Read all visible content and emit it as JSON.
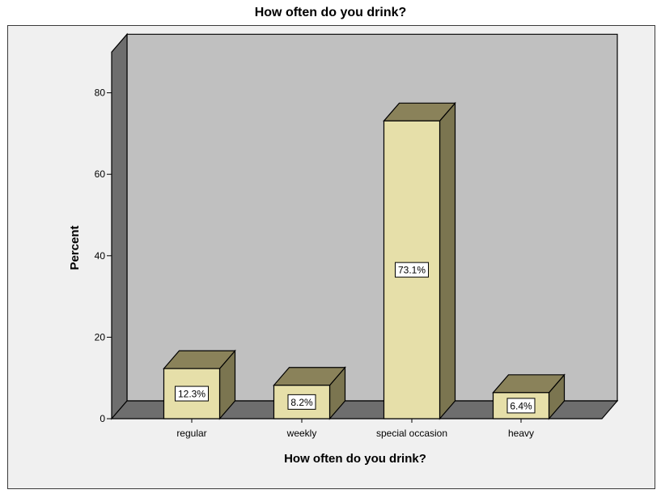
{
  "chart_data": {
    "type": "bar",
    "title": "How often do you drink?",
    "xlabel": "How often do you drink?",
    "ylabel": "Percent",
    "categories": [
      "regular",
      "weekly",
      "special occasion",
      "heavy"
    ],
    "values": [
      12.3,
      8.2,
      73.1,
      6.4
    ],
    "data_labels": [
      "12.3%",
      "8.2%",
      "73.1%",
      "6.4%"
    ],
    "yticks": [
      "0",
      "20",
      "40",
      "60",
      "80"
    ],
    "ylim": [
      0,
      80
    ],
    "grid": false,
    "legend": "none",
    "style": "3d"
  },
  "colors": {
    "bar_front": "#e6dfa9",
    "bar_top": "#8a825a",
    "bar_side": "#7b7550",
    "plot_back": "#c0c0c0",
    "floor": "#6e6e6e",
    "left_wall": "#6e6e6e",
    "frame_bg": "#f0f0f0"
  }
}
